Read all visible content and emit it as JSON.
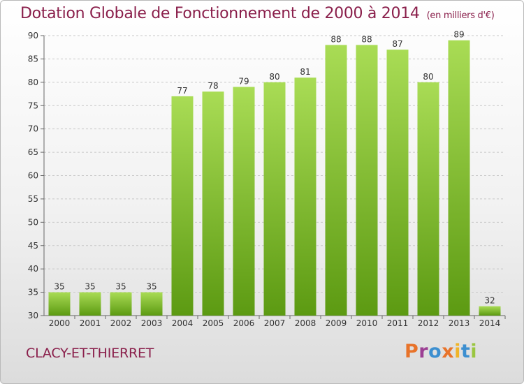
{
  "header": {
    "title": "Dotation Globale de Fonctionnement de 2000 à 2014",
    "unit": "(en milliers d'€)"
  },
  "footer": {
    "commune": "CLACY-ET-THIERRET",
    "logo_text": "Proxiti"
  },
  "colors": {
    "title": "#8a1f4b",
    "bar_top": "#a9dc55",
    "bar_bottom": "#5c9a12",
    "grid": "#c8c8c8",
    "logo_letters": [
      "#e8732a",
      "#9c3f93",
      "#3c8fd0",
      "#e8732a",
      "#f0b428",
      "#3c8fd0",
      "#9ac640"
    ]
  },
  "chart_data": {
    "type": "bar",
    "title": "Dotation Globale de Fonctionnement de 2000 à 2014",
    "subtitle": "(en milliers d'€)",
    "xlabel": "",
    "ylabel": "",
    "categories": [
      "2000",
      "2001",
      "2002",
      "2003",
      "2004",
      "2005",
      "2006",
      "2007",
      "2008",
      "2009",
      "2010",
      "2011",
      "2012",
      "2013",
      "2014"
    ],
    "values": [
      35,
      35,
      35,
      35,
      77,
      78,
      79,
      80,
      81,
      88,
      88,
      87,
      80,
      89,
      32
    ],
    "data_labels": [
      "35",
      "35",
      "35",
      "35",
      "77",
      "78",
      "79",
      "80",
      "81",
      "88",
      "88",
      "87",
      "80",
      "89",
      "32"
    ],
    "ylim": [
      30,
      90
    ],
    "yticks": [
      30,
      35,
      40,
      45,
      50,
      55,
      60,
      65,
      70,
      75,
      80,
      85,
      90
    ],
    "grid": "horizontal-dashed",
    "legend": "none"
  }
}
